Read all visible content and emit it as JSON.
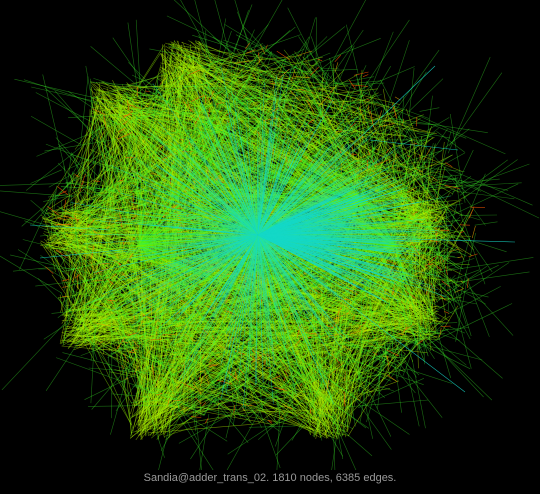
{
  "caption": "Sandia@adder_trans_02. 1810 nodes, 6385 edges.",
  "colors": {
    "background": "#000000",
    "hub_edge": "#16d8c8",
    "mid_edge": "#3cf02a",
    "outer_edge": "#b8f000",
    "short_edge": "#ff5a00"
  }
}
